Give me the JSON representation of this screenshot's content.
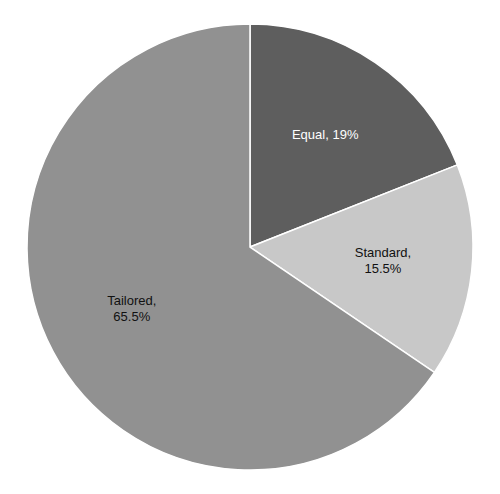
{
  "chart_data": {
    "type": "pie",
    "values": [
      19.0,
      15.5,
      65.5
    ],
    "value_labels": [
      "Equal, 19%",
      "Standard,\n15.5%",
      "Tailored,\n65.5%"
    ],
    "colors": [
      "#5e5e5e",
      "#c8c8c8",
      "#919191"
    ],
    "data_labels": true
  }
}
